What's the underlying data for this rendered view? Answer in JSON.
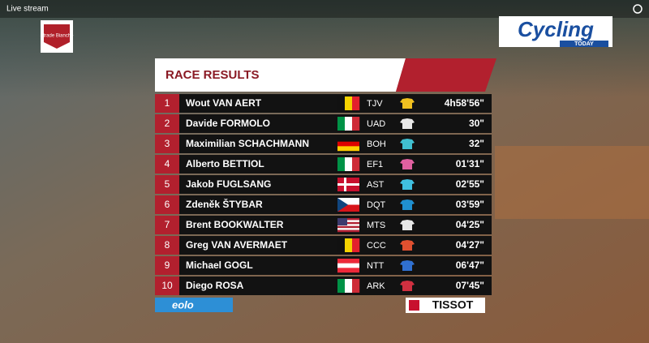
{
  "header": {
    "title": "Live stream"
  },
  "logos": {
    "event": "Strade Bianche",
    "brand": "Cycling",
    "brand_sub": "TODAY",
    "sponsor_left": "eolo",
    "sponsor_right": "TISSOT"
  },
  "table": {
    "title": "RACE RESULTS",
    "rows": [
      [
        "1",
        "Wout VAN AERT",
        "TJV",
        "4h58'56\""
      ],
      [
        "2",
        "Davide FORMOLO",
        "UAD",
        "30\""
      ],
      [
        "3",
        "Maximilian SCHACHMANN",
        "BOH",
        "32\""
      ],
      [
        "4",
        "Alberto BETTIOL",
        "EF1",
        "01'31\""
      ],
      [
        "5",
        "Jakob FUGLSANG",
        "AST",
        "02'55\""
      ],
      [
        "6",
        "Zdeněk ŠTYBAR",
        "DQT",
        "03'59\""
      ],
      [
        "7",
        "Brent BOOKWALTER",
        "MTS",
        "04'25\""
      ],
      [
        "8",
        "Greg VAN AVERMAET",
        "CCC",
        "04'27\""
      ],
      [
        "9",
        "Michael GOGL",
        "NTT",
        "06'47\""
      ],
      [
        "10",
        "Diego ROSA",
        "ARK",
        "07'45\""
      ]
    ]
  }
}
